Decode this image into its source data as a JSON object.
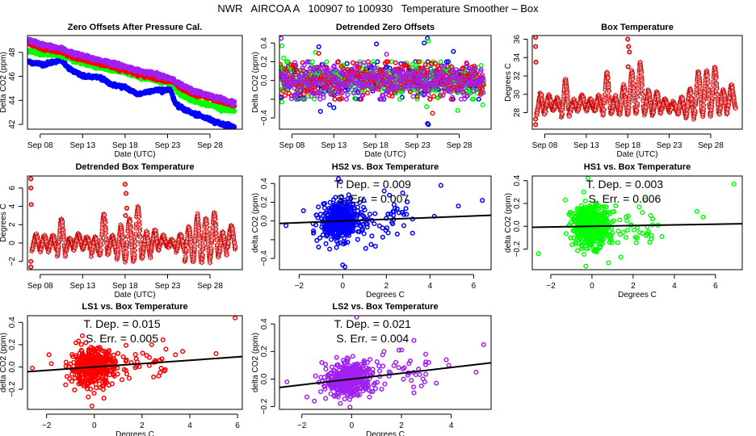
{
  "page_title": "NWR   AIRCOA A   100907 to 100930   Temperature Smoother – Box",
  "colors": {
    "HS2": "#0000ff",
    "HS1": "#00ff00",
    "LS1": "#ff0000",
    "LS2": "#a020f0",
    "box_temp": "#cc0000",
    "fit_line": "#000000"
  },
  "chart_data": [
    {
      "id": "zero-offsets",
      "type": "scatter",
      "title": "Zero Offsets After Pressure Cal.",
      "xlabel": "Date (UTC)",
      "ylabel": "Delta CO2 (ppm)",
      "x_ticks": [
        "Sep 08",
        "Sep 13",
        "Sep 18",
        "Sep 23",
        "Sep 28"
      ],
      "x_tick_days": [
        8,
        13,
        18,
        23,
        28
      ],
      "xlim": [
        6.5,
        31.8
      ],
      "y_ticks": [
        42,
        44,
        46,
        48
      ],
      "ylim": [
        41.6,
        49.4
      ],
      "x_range_days": [
        6.6,
        30.9
      ],
      "series": [
        {
          "name": "HS2",
          "color_key": "HS2",
          "anchors": [
            [
              6.6,
              47.2
            ],
            [
              8.5,
              47.0
            ],
            [
              10.5,
              47.4
            ],
            [
              11.5,
              46.6
            ],
            [
              13,
              46.0
            ],
            [
              15,
              45.9
            ],
            [
              16.5,
              45.3
            ],
            [
              18,
              45.1
            ],
            [
              19.5,
              44.5
            ],
            [
              21,
              44.8
            ],
            [
              23,
              44.9
            ],
            [
              23.3,
              45.0
            ],
            [
              24,
              43.6
            ],
            [
              26,
              42.9
            ],
            [
              28,
              42.4
            ],
            [
              29.5,
              42.0
            ],
            [
              30.9,
              41.8
            ]
          ]
        },
        {
          "name": "HS1",
          "color_key": "HS1",
          "anchors": [
            [
              6.6,
              48.1
            ],
            [
              8.5,
              47.9
            ],
            [
              10.5,
              47.8
            ],
            [
              12,
              47.3
            ],
            [
              14,
              46.9
            ],
            [
              16,
              46.6
            ],
            [
              18,
              46.3
            ],
            [
              20,
              45.9
            ],
            [
              22,
              45.6
            ],
            [
              23.6,
              45.4
            ],
            [
              24.5,
              44.5
            ],
            [
              26,
              44.0
            ],
            [
              28,
              43.6
            ],
            [
              30.9,
              43.1
            ]
          ]
        },
        {
          "name": "LS1",
          "color_key": "LS1",
          "anchors": [
            [
              6.6,
              48.7
            ],
            [
              8.5,
              48.3
            ],
            [
              10.5,
              48.0
            ],
            [
              12,
              47.6
            ],
            [
              14,
              47.2
            ],
            [
              16,
              46.9
            ],
            [
              18,
              46.5
            ],
            [
              20,
              46.1
            ],
            [
              22,
              45.8
            ],
            [
              23.6,
              45.6
            ],
            [
              24.5,
              45.0
            ],
            [
              26,
              44.5
            ],
            [
              28,
              44.2
            ],
            [
              30.9,
              43.6
            ]
          ]
        },
        {
          "name": "LS2",
          "color_key": "LS2",
          "anchors": [
            [
              6.6,
              49.0
            ],
            [
              8.5,
              48.6
            ],
            [
              10.5,
              48.3
            ],
            [
              12,
              47.9
            ],
            [
              14,
              47.5
            ],
            [
              16,
              47.2
            ],
            [
              18,
              46.8
            ],
            [
              20,
              46.4
            ],
            [
              22,
              46.1
            ],
            [
              23.6,
              45.8
            ],
            [
              24.5,
              45.3
            ],
            [
              26,
              44.8
            ],
            [
              28,
              44.4
            ],
            [
              30.9,
              43.8
            ]
          ]
        }
      ]
    },
    {
      "id": "detrended-zero-offsets",
      "type": "scatter",
      "title": "Detrended Zero Offsets",
      "xlabel": "Date (UTC)",
      "ylabel": "Delta CO2 (ppm)",
      "x_ticks": [
        "Sep 08",
        "Sep 13",
        "Sep 18",
        "Sep 23",
        "Sep 28"
      ],
      "x_tick_days": [
        8,
        13,
        18,
        23,
        28
      ],
      "xlim": [
        6.5,
        31.8
      ],
      "y_ticks": [
        -0.4,
        -0.2,
        0.0,
        0.2,
        0.4
      ],
      "y_tick_labels": [
        "-0.4",
        "",
        "0.0",
        "0.2",
        "0.4"
      ],
      "ylim": [
        -0.52,
        0.48
      ],
      "x_range_days": [
        6.6,
        30.9
      ],
      "spread": 0.09,
      "series_order": [
        "HS2",
        "HS1",
        "LS1",
        "LS2"
      ],
      "outliers": [
        {
          "s": "LS2",
          "x": 6.7,
          "y": 0.45
        },
        {
          "s": "HS1",
          "x": 6.8,
          "y": 0.37
        },
        {
          "s": "HS1",
          "x": 7.0,
          "y": 0.24
        },
        {
          "s": "HS1",
          "x": 6.8,
          "y": -0.23
        },
        {
          "s": "HS2",
          "x": 11.2,
          "y": 0.36
        },
        {
          "s": "HS2",
          "x": 11.4,
          "y": -0.33
        },
        {
          "s": "HS2",
          "x": 12.5,
          "y": -0.26
        },
        {
          "s": "HS2",
          "x": 13.0,
          "y": -0.29
        },
        {
          "s": "HS2",
          "x": 18.1,
          "y": 0.39
        },
        {
          "s": "HS2",
          "x": 23.8,
          "y": 0.4
        },
        {
          "s": "HS2",
          "x": 24.2,
          "y": 0.45
        },
        {
          "s": "HS1",
          "x": 24.3,
          "y": 0.42
        },
        {
          "s": "HS2",
          "x": 24.2,
          "y": -0.46
        },
        {
          "s": "HS2",
          "x": 24.3,
          "y": -0.47
        },
        {
          "s": "HS1",
          "x": 24.1,
          "y": -0.28
        },
        {
          "s": "LS1",
          "x": 24.8,
          "y": -0.35
        },
        {
          "s": "HS2",
          "x": 27.3,
          "y": 0.31
        },
        {
          "s": "HS1",
          "x": 27.8,
          "y": -0.32
        },
        {
          "s": "HS1",
          "x": 30.8,
          "y": -0.26
        },
        {
          "s": "LS2",
          "x": 19.3,
          "y": 0.28
        },
        {
          "s": "LS1",
          "x": 19.3,
          "y": 0.2
        },
        {
          "s": "HS1",
          "x": 10.8,
          "y": 0.3
        },
        {
          "s": "LS1",
          "x": 11.2,
          "y": 0.29
        }
      ]
    },
    {
      "id": "box-temperature",
      "type": "scatter",
      "title": "Box Temperature",
      "xlabel": "Date (UTC)",
      "ylabel": "Degrees C",
      "x_ticks": [
        "Sep 08",
        "Sep 13",
        "Sep 18",
        "Sep 23",
        "Sep 28"
      ],
      "x_tick_days": [
        8,
        13,
        18,
        23,
        28
      ],
      "xlim": [
        6.5,
        31.8
      ],
      "y_ticks": [
        28,
        30,
        32,
        34,
        36
      ],
      "ylim": [
        26.2,
        36.4
      ],
      "baseline": 28.8,
      "daily_peaks": [
        30.0,
        29.8,
        29.5,
        31.5,
        29.3,
        29.8,
        29.4,
        29.7,
        32.2,
        29.6,
        30.9,
        32.4,
        33.3,
        30.2,
        30.1,
        29.4,
        29.0,
        29.6,
        30.5,
        32.4,
        32.4,
        32.8,
        30.4,
        30.9
      ],
      "daily_lows": [
        27.9,
        28.3,
        28.3,
        27.6,
        28.2,
        28.4,
        28.3,
        28.3,
        27.9,
        28.0,
        27.9,
        27.9,
        28.0,
        27.9,
        28.0,
        28.3,
        28.2,
        27.8,
        27.5,
        27.8,
        27.7,
        28.0,
        27.9,
        28.5
      ],
      "spikes": [
        {
          "x": 6.9,
          "y": 36.2
        },
        {
          "x": 6.9,
          "y": 35.2
        },
        {
          "x": 6.95,
          "y": 33.5
        },
        {
          "x": 6.9,
          "y": 26.7
        },
        {
          "x": 6.9,
          "y": 27.3
        },
        {
          "x": 18.0,
          "y": 36.0
        },
        {
          "x": 18.1,
          "y": 35.2
        },
        {
          "x": 18.2,
          "y": 34.6
        },
        {
          "x": 18.05,
          "y": 33.0
        }
      ]
    },
    {
      "id": "detrended-box-temperature",
      "type": "scatter",
      "title": "Detrended Box Temperature",
      "xlabel": "Date (UTC)",
      "ylabel": "Degrees C",
      "x_ticks": [
        "Sep 08",
        "Sep 13",
        "Sep 18",
        "Sep 23",
        "Sep 28"
      ],
      "x_tick_days": [
        8,
        13,
        18,
        23,
        28
      ],
      "xlim": [
        6.5,
        31.8
      ],
      "y_ticks": [
        -2,
        0,
        2,
        4,
        6
      ],
      "ylim": [
        -2.9,
        7.3
      ],
      "baseline": 0.0,
      "daily_peaks": [
        0.9,
        0.8,
        0.7,
        2.6,
        0.5,
        0.9,
        0.6,
        0.6,
        3.1,
        0.7,
        1.7,
        2.6,
        3.9,
        1.1,
        1.3,
        0.7,
        0.3,
        0.9,
        1.7,
        2.9,
        2.6,
        3.2,
        1.1,
        1.8
      ],
      "daily_lows": [
        -0.7,
        -0.8,
        -0.6,
        -1.3,
        -0.7,
        -0.4,
        -0.6,
        -1.2,
        -1.4,
        -0.9,
        -1.7,
        -1.9,
        -1.8,
        -1.5,
        -0.9,
        -0.3,
        -0.4,
        -0.8,
        -1.9,
        -2.0,
        -2.0,
        -1.6,
        -1.2,
        -0.5
      ],
      "spikes": [
        {
          "x": 6.9,
          "y": 7.0
        },
        {
          "x": 6.9,
          "y": 6.0
        },
        {
          "x": 6.95,
          "y": 4.2
        },
        {
          "x": 6.9,
          "y": -2.6
        },
        {
          "x": 6.9,
          "y": -2.0
        },
        {
          "x": 18.0,
          "y": 6.4
        },
        {
          "x": 18.1,
          "y": 5.4
        },
        {
          "x": 18.2,
          "y": 3.8
        },
        {
          "x": 18.05,
          "y": 3.0
        }
      ]
    },
    {
      "id": "hs2-vs-box",
      "type": "scatter",
      "title": "HS2 vs. Box Temperature",
      "series_key": "HS2",
      "xlabel": "Degrees C",
      "ylabel": "delta CO2 (ppm)",
      "x_ticks": [
        -2,
        0,
        2,
        4,
        6
      ],
      "xlim": [
        -2.9,
        6.8
      ],
      "y_ticks": [
        -0.4,
        -0.2,
        0.0,
        0.2,
        0.4
      ],
      "y_tick_labels": [
        "-0.4",
        "",
        "0.0",
        "0.2",
        "0.4"
      ],
      "ylim": [
        -0.52,
        0.48
      ],
      "slope": 0.009,
      "intercept": 0.0,
      "stats": {
        "t_dep_label": "T. Dep. =  0.009",
        "s_err_label": "S. Err. =  0.007"
      },
      "cloud_sd": [
        0.45,
        0.1
      ],
      "outliers": [
        [
          -2.6,
          -0.05
        ],
        [
          -1.8,
          0.11
        ],
        [
          4.5,
          0.38
        ],
        [
          5.3,
          0.16
        ],
        [
          6.4,
          0.22
        ],
        [
          4.2,
          0.05
        ],
        [
          3.2,
          -0.13
        ],
        [
          3.2,
          0.02
        ],
        [
          2.5,
          -0.14
        ],
        [
          2.8,
          -0.05
        ],
        [
          -0.2,
          0.45
        ],
        [
          -0.1,
          0.42
        ],
        [
          0.0,
          -0.47
        ],
        [
          0.1,
          -0.49
        ],
        [
          1.5,
          -0.27
        ],
        [
          1.3,
          -0.25
        ],
        [
          1.9,
          0.32
        ],
        [
          2.3,
          0.1
        ],
        [
          2.8,
          0.07
        ],
        [
          -0.6,
          -0.3
        ]
      ]
    },
    {
      "id": "hs1-vs-box",
      "type": "scatter",
      "title": "HS1 vs. Box Temperature",
      "series_key": "HS1",
      "xlabel": "Degrees C",
      "ylabel": "delta CO2 (ppm)",
      "x_ticks": [
        -2,
        0,
        2,
        4,
        6
      ],
      "xlim": [
        -2.9,
        7.3
      ],
      "y_ticks": [
        -0.2,
        0.0,
        0.2,
        0.4
      ],
      "y_tick_labels": [
        "-0.2",
        "0.0",
        "0.2",
        "0.4"
      ],
      "ylim": [
        -0.38,
        0.44
      ],
      "slope": 0.003,
      "intercept": 0.0,
      "stats": {
        "t_dep_label": "T. Dep. =  0.003",
        "s_err_label": "S. Err. =  0.006"
      },
      "cloud_sd": [
        0.45,
        0.09
      ],
      "outliers": [
        [
          -2.6,
          -0.24
        ],
        [
          6.9,
          0.37
        ],
        [
          5.1,
          0.13
        ],
        [
          5.4,
          0.08
        ],
        [
          3.4,
          -0.09
        ],
        [
          2.8,
          -0.14
        ],
        [
          -0.2,
          0.42
        ],
        [
          -0.3,
          -0.35
        ],
        [
          0.8,
          -0.32
        ],
        [
          1.4,
          -0.27
        ],
        [
          2.6,
          0.23
        ],
        [
          -1.3,
          0.23
        ],
        [
          -0.4,
          0.3
        ],
        [
          3.2,
          0.01
        ],
        [
          2.2,
          -0.1
        ]
      ]
    },
    {
      "id": "ls1-vs-box",
      "type": "scatter",
      "title": "LS1 vs. Box Temperature",
      "series_key": "LS1",
      "xlabel": "Degrees C",
      "ylabel": "delta CO2 (ppm)",
      "x_ticks": [
        -2,
        0,
        2,
        4,
        6
      ],
      "xlim": [
        -2.8,
        6.2
      ],
      "y_ticks": [
        -0.2,
        0.0,
        0.2,
        0.4
      ],
      "y_tick_labels": [
        "-0.2",
        "0.0",
        "0.2",
        "0.4"
      ],
      "ylim": [
        -0.38,
        0.46
      ],
      "slope": 0.015,
      "intercept": 0.0,
      "stats": {
        "t_dep_label": "T. Dep. =  0.015",
        "s_err_label": "S. Err. =  0.005"
      },
      "cloud_sd": [
        0.45,
        0.08
      ],
      "outliers": [
        [
          -2.6,
          -0.01
        ],
        [
          5.9,
          0.44
        ],
        [
          5.1,
          0.12
        ],
        [
          3.7,
          0.14
        ],
        [
          3.4,
          0.11
        ],
        [
          3.0,
          0.16
        ],
        [
          2.8,
          -0.01
        ],
        [
          2.7,
          -0.08
        ],
        [
          -0.1,
          -0.35
        ],
        [
          0.4,
          -0.28
        ],
        [
          -0.5,
          0.28
        ],
        [
          -1.2,
          -0.16
        ],
        [
          2.4,
          0.2
        ],
        [
          -1.9,
          0.11
        ],
        [
          -1.8,
          0.03
        ]
      ]
    },
    {
      "id": "ls2-vs-box",
      "type": "scatter",
      "title": "LS2 vs. Box Temperature",
      "series_key": "LS2",
      "xlabel": "Degrees C",
      "ylabel": "delta CO2 (ppm)",
      "x_ticks": [
        -2,
        0,
        2,
        4
      ],
      "xlim": [
        -2.9,
        5.6
      ],
      "y_ticks": [
        -0.2,
        0.0,
        0.2,
        0.4
      ],
      "y_tick_labels": [
        "-0.2",
        "0.0",
        "0.2",
        "0.4"
      ],
      "ylim": [
        -0.22,
        0.46
      ],
      "slope": 0.021,
      "intercept": 0.0,
      "stats": {
        "t_dep_label": "T. Dep. =  0.021",
        "s_err_label": "S. Err. =  0.004"
      },
      "cloud_sd": [
        0.45,
        0.06
      ],
      "outliers": [
        [
          -2.6,
          -0.02
        ],
        [
          5.3,
          0.25
        ],
        [
          5.0,
          0.05
        ],
        [
          3.8,
          0.14
        ],
        [
          3.9,
          0.1
        ],
        [
          3.4,
          -0.03
        ],
        [
          2.5,
          0.28
        ],
        [
          1.9,
          0.21
        ],
        [
          2.5,
          -0.1
        ],
        [
          2.8,
          -0.05
        ],
        [
          0.2,
          0.45
        ],
        [
          1.3,
          0.2
        ],
        [
          -1.8,
          -0.13
        ],
        [
          -1.5,
          -0.16
        ],
        [
          -1.2,
          0.12
        ],
        [
          3.1,
          0.12
        ]
      ]
    }
  ]
}
